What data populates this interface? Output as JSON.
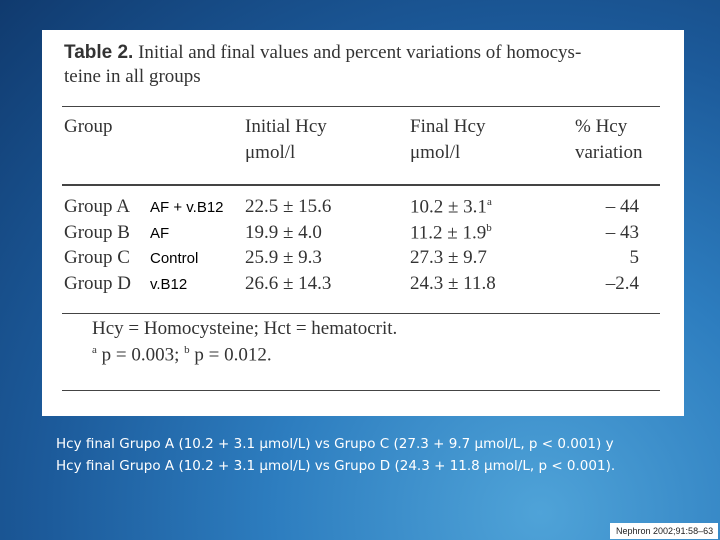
{
  "table": {
    "title_label": "Table 2.",
    "title_lines": [
      "Initial and final values and percent variations of homocys-",
      "teine in all groups"
    ],
    "headers": [
      [
        "Group"
      ],
      [
        "Initial Hcy",
        "μmol/l"
      ],
      [
        "Final Hcy",
        "μmol/l"
      ],
      [
        "% Hcy",
        "variation"
      ]
    ],
    "rows": [
      {
        "group": "Group A",
        "label": "AF + v.B12",
        "initial": "22.5 ± 15.6",
        "final": "10.2 ± 3.1",
        "final_sup": "a",
        "variation": "– 44"
      },
      {
        "group": "Group B",
        "label": "AF",
        "initial": "19.9 ± 4.0",
        "final": "11.2 ± 1.9",
        "final_sup": "b",
        "variation": "– 43"
      },
      {
        "group": "Group C",
        "label": "Control",
        "initial": "25.9 ± 9.3",
        "final": "27.3 ± 9.7",
        "final_sup": null,
        "variation": "5"
      },
      {
        "group": "Group D",
        "label": "v.B12",
        "initial": "26.6 ± 14.3",
        "final": "24.3 ± 11.8",
        "final_sup": null,
        "variation": "–2.4"
      }
    ],
    "footnotes": [
      {
        "sup": null,
        "text": "Hcy = Homocysteine; Hct = hematocrit."
      },
      {
        "sup": "a",
        "text": " p = 0.003; ",
        "sup2": "b",
        "text2": " p = 0.012."
      }
    ]
  },
  "caption": [
    "Hcy final Grupo A (10.2 + 3.1 μmol/L) vs Grupo C (27.3 + 9.7 μmol/L, p < 0.001) y",
    "Hcy final Grupo A (10.2 + 3.1 μmol/L)  vs Grupo D (24.3 + 11.8 μmol/L, p < 0.001)."
  ],
  "citation": "Nephron 2002;91:58–63"
}
